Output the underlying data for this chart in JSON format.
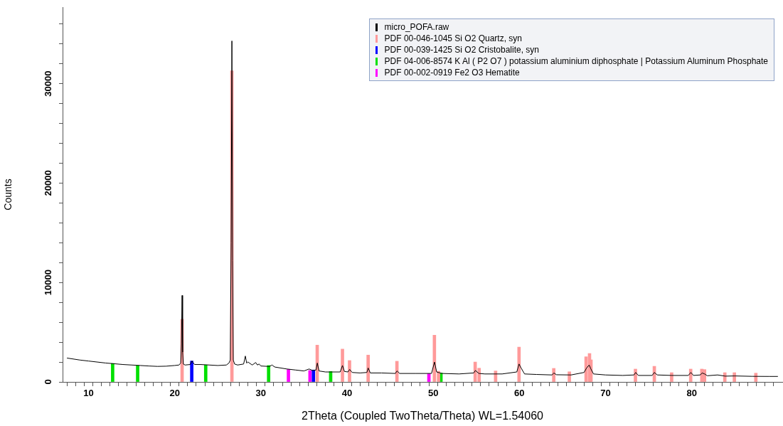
{
  "chart_data": {
    "type": "line",
    "xlabel": "2Theta (Coupled TwoTheta/Theta) WL=1.54060",
    "ylabel": "Counts",
    "xlim": [
      7.5,
      90
    ],
    "ylim": [
      0,
      37700
    ],
    "xticks": [
      {
        "value": 8,
        "label": null
      },
      {
        "value": 9,
        "label": null
      },
      10,
      {
        "value": 11,
        "label": null
      },
      {
        "value": 12,
        "label": null
      },
      {
        "value": 13,
        "label": null
      },
      {
        "value": 14,
        "label": null
      },
      {
        "value": 15,
        "label": null
      },
      {
        "value": 16,
        "label": null
      },
      {
        "value": 17,
        "label": null
      },
      {
        "value": 18,
        "label": null
      },
      {
        "value": 19,
        "label": null
      },
      20,
      {
        "value": 21,
        "label": null
      },
      {
        "value": 22,
        "label": null
      },
      {
        "value": 23,
        "label": null
      },
      {
        "value": 24,
        "label": null
      },
      {
        "value": 25,
        "label": null
      },
      {
        "value": 26,
        "label": null
      },
      {
        "value": 27,
        "label": null
      },
      {
        "value": 28,
        "label": null
      },
      {
        "value": 29,
        "label": null
      },
      30,
      {
        "value": 31,
        "label": null
      },
      {
        "value": 32,
        "label": null
      },
      {
        "value": 33,
        "label": null
      },
      {
        "value": 34,
        "label": null
      },
      {
        "value": 35,
        "label": null
      },
      {
        "value": 36,
        "label": null
      },
      {
        "value": 37,
        "label": null
      },
      {
        "value": 38,
        "label": null
      },
      {
        "value": 39,
        "label": null
      },
      40,
      {
        "value": 41,
        "label": null
      },
      {
        "value": 42,
        "label": null
      },
      {
        "value": 43,
        "label": null
      },
      {
        "value": 44,
        "label": null
      },
      {
        "value": 45,
        "label": null
      },
      {
        "value": 46,
        "label": null
      },
      {
        "value": 47,
        "label": null
      },
      {
        "value": 48,
        "label": null
      },
      {
        "value": 49,
        "label": null
      },
      50,
      {
        "value": 51,
        "label": null
      },
      {
        "value": 52,
        "label": null
      },
      {
        "value": 53,
        "label": null
      },
      {
        "value": 54,
        "label": null
      },
      {
        "value": 55,
        "label": null
      },
      {
        "value": 56,
        "label": null
      },
      {
        "value": 57,
        "label": null
      },
      {
        "value": 58,
        "label": null
      },
      {
        "value": 59,
        "label": null
      },
      60,
      {
        "value": 61,
        "label": null
      },
      {
        "value": 62,
        "label": null
      },
      {
        "value": 63,
        "label": null
      },
      {
        "value": 64,
        "label": null
      },
      {
        "value": 65,
        "label": null
      },
      {
        "value": 66,
        "label": null
      },
      {
        "value": 67,
        "label": null
      },
      {
        "value": 68,
        "label": null
      },
      {
        "value": 69,
        "label": null
      },
      70,
      {
        "value": 71,
        "label": null
      },
      {
        "value": 72,
        "label": null
      },
      {
        "value": 73,
        "label": null
      },
      {
        "value": 74,
        "label": null
      },
      {
        "value": 75,
        "label": null
      },
      {
        "value": 76,
        "label": null
      },
      {
        "value": 77,
        "label": null
      },
      {
        "value": 78,
        "label": null
      },
      {
        "value": 79,
        "label": null
      },
      80,
      {
        "value": 81,
        "label": null
      },
      {
        "value": 82,
        "label": null
      },
      {
        "value": 83,
        "label": null
      },
      {
        "value": 84,
        "label": null
      },
      {
        "value": 85,
        "label": null
      },
      {
        "value": 86,
        "label": null
      },
      {
        "value": 87,
        "label": null
      },
      {
        "value": 88,
        "label": null
      },
      {
        "value": 89,
        "label": null
      }
    ],
    "yticks": [
      0,
      {
        "value": 2000,
        "label": null
      },
      {
        "value": 4000,
        "label": null
      },
      {
        "value": 6000,
        "label": null
      },
      {
        "value": 8000,
        "label": null
      },
      10000,
      {
        "value": 12000,
        "label": null
      },
      {
        "value": 14000,
        "label": null
      },
      {
        "value": 16000,
        "label": null
      },
      {
        "value": 18000,
        "label": null
      },
      20000,
      {
        "value": 22000,
        "label": null
      },
      {
        "value": 24000,
        "label": null
      },
      {
        "value": 26000,
        "label": null
      },
      {
        "value": 28000,
        "label": null
      },
      30000,
      {
        "value": 32000,
        "label": null
      },
      {
        "value": 34000,
        "label": null
      },
      {
        "value": 36000,
        "label": null
      }
    ],
    "legend": "top right",
    "marker": "none",
    "series": [
      {
        "name": "micro_POFA.raw",
        "color": "#000000",
        "x": [
          7.5,
          9,
          10,
          12,
          14,
          15,
          16,
          17,
          18,
          19,
          20,
          20.5,
          20.7,
          20.78,
          20.86,
          20.92,
          21.0,
          21.2,
          21.8,
          22.0,
          22.3,
          23,
          24,
          25,
          26,
          26.3,
          26.45,
          26.55,
          26.64,
          26.72,
          26.8,
          26.95,
          27.3,
          28,
          28.2,
          28.35,
          28.5,
          29,
          29.4,
          29.6,
          29.8,
          30,
          31,
          31.3,
          31.6,
          33,
          34,
          35,
          35.6,
          36,
          36.4,
          36.55,
          36.75,
          37.5,
          39.2,
          39.47,
          39.7,
          40.1,
          40.3,
          40.6,
          41.5,
          42.3,
          42.45,
          42.7,
          44,
          45.6,
          45.8,
          46.1,
          48,
          49.8,
          50.15,
          50.4,
          51,
          53,
          54.7,
          54.9,
          55.3,
          56,
          58,
          59.7,
          59.96,
          60.2,
          60.6,
          62,
          63.8,
          64,
          64.3,
          66,
          67.5,
          67.8,
          68.1,
          68.3,
          68.6,
          70,
          72,
          73.3,
          73.5,
          73.8,
          75.4,
          75.66,
          76,
          77.7,
          79.6,
          79.9,
          80.2,
          81,
          81.2,
          81.5,
          81.8,
          83,
          83.9,
          85,
          87,
          89,
          90
        ],
        "values": [
          2400,
          2200,
          2100,
          1900,
          1750,
          1700,
          1650,
          1600,
          1560,
          1580,
          1650,
          1700,
          1900,
          3800,
          8700,
          3000,
          1800,
          1700,
          1750,
          2100,
          1750,
          1750,
          1700,
          1650,
          1700,
          1900,
          2200,
          14000,
          34300,
          12200,
          2200,
          1800,
          1700,
          1800,
          2600,
          1900,
          2000,
          1700,
          1950,
          1700,
          1800,
          1600,
          1550,
          1700,
          1500,
          1300,
          1200,
          1100,
          1300,
          1150,
          1200,
          1900,
          1100,
          1000,
          1000,
          1650,
          1050,
          1000,
          1250,
          950,
          900,
          950,
          1400,
          900,
          900,
          850,
          1100,
          850,
          850,
          850,
          2000,
          1000,
          850,
          800,
          900,
          1150,
          850,
          800,
          800,
          1000,
          1800,
          1400,
          800,
          750,
          700,
          900,
          720,
          700,
          950,
          1400,
          1700,
          1300,
          800,
          700,
          650,
          700,
          950,
          650,
          650,
          950,
          700,
          650,
          650,
          950,
          650,
          700,
          900,
          800,
          620,
          700,
          580,
          600,
          560,
          550,
          550
        ]
      },
      {
        "name": "PDF 00-046-1045 Si O2 Quartz, syn",
        "color": "#ff9a9a",
        "type": "bar",
        "x": [
          20.86,
          26.64,
          36.54,
          39.47,
          40.29,
          42.45,
          45.79,
          50.14,
          50.62,
          54.87,
          55.33,
          57.24,
          59.96,
          63.99,
          65.8,
          67.74,
          68.14,
          68.31,
          73.47,
          75.66,
          77.67,
          79.88,
          81.17,
          81.49,
          83.84,
          84.95,
          87.44
        ],
        "values": [
          6300,
          31300,
          3700,
          3300,
          2150,
          2700,
          2080,
          4700,
          1070,
          2000,
          1380,
          1100,
          3500,
          1360,
          1020,
          2530,
          2860,
          2220,
          1290,
          1570,
          930,
          1290,
          1290,
          1240,
          930,
          930,
          880
        ]
      },
      {
        "name": "PDF 00-039-1425 Si O2 Cristobalite, syn",
        "color": "#0000ff",
        "type": "bar",
        "x": [
          21.98,
          36.1
        ],
        "values": [
          2100,
          1200
        ]
      },
      {
        "name": "PDF 04-006-8574 K Al ( P2 O7 ) potassium aluminium diphosphate | Potassium Aluminum Phosphate",
        "color": "#00e000",
        "type": "bar",
        "x": [
          12.8,
          15.7,
          23.6,
          30.9,
          38.1,
          50.9
        ],
        "values": [
          1850,
          1650,
          1700,
          1650,
          1050,
          900
        ]
      },
      {
        "name": "PDF 00-002-0919 Fe2 O3 Hematite",
        "color": "#ff00ff",
        "type": "bar",
        "x": [
          33.2,
          35.7,
          49.5
        ],
        "values": [
          1250,
          1150,
          820
        ]
      }
    ]
  }
}
